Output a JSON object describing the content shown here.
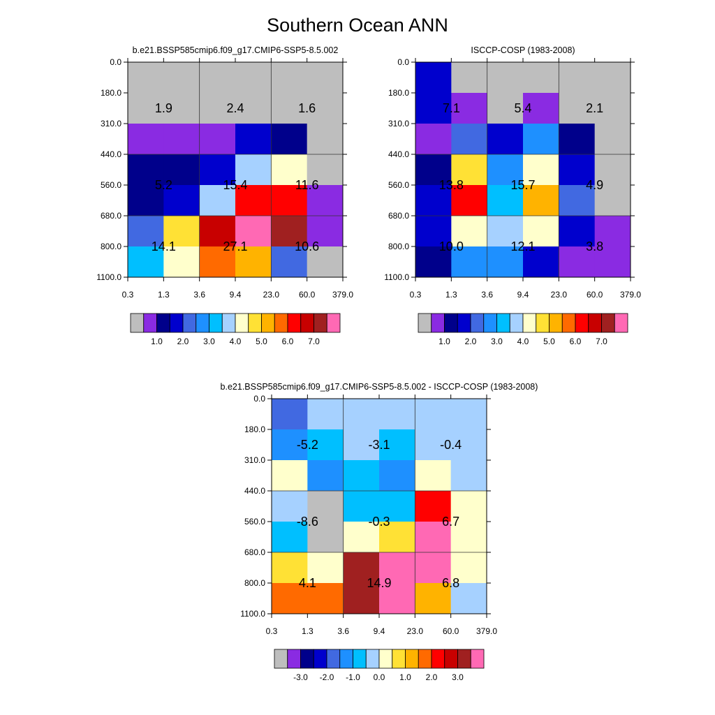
{
  "title": "Southern Ocean ANN",
  "colors": {
    "ref": [
      "#BEBEBE",
      "#8A2BE2",
      "#00008B",
      "#0000CD",
      "#4169E1",
      "#1E90FF",
      "#00BFFF",
      "#A6D1FF",
      "#FFFFCC",
      "#FFE135",
      "#FFB300",
      "#FF6A00",
      "#FF0000",
      "#C80000",
      "#A02020",
      "#FF69B4"
    ],
    "diff": [
      "#BEBEBE",
      "#8A2BE2",
      "#00008B",
      "#0000CD",
      "#4169E1",
      "#1E90FF",
      "#00BFFF",
      "#A6D1FF",
      "#FFFFCC",
      "#FFE135",
      "#FFB300",
      "#FF6A00",
      "#FF0000",
      "#C80000",
      "#A02020",
      "#FF69B4"
    ]
  },
  "chart_data": [
    {
      "type": "heatmap",
      "title": "b.e21.BSSP585cmip6.f09_g17.CMIP6-SSP5-8.5.002",
      "x_ticks": [
        "0.3",
        "1.3",
        "3.6",
        "9.4",
        "23.0",
        "60.0",
        "379.0"
      ],
      "y_ticks": [
        "0.0",
        "180.0",
        "310.0",
        "440.0",
        "560.0",
        "680.0",
        "800.0",
        "1100.0"
      ],
      "cell_colors": [
        [
          0,
          0,
          0,
          0,
          0,
          0
        ],
        [
          0,
          0,
          0,
          0,
          0,
          0
        ],
        [
          1,
          1,
          1,
          3,
          2,
          0
        ],
        [
          2,
          2,
          3,
          7,
          8,
          0
        ],
        [
          2,
          3,
          7,
          12,
          12,
          1
        ],
        [
          4,
          9,
          13,
          15,
          14,
          1
        ],
        [
          6,
          8,
          11,
          10,
          4,
          0
        ]
      ],
      "labels": [
        [
          "1.9",
          "2.4",
          "1.6"
        ],
        [
          "5.2",
          "15.4",
          "11.6"
        ],
        [
          "14.1",
          "27.1",
          "10.6"
        ]
      ],
      "colorbar": {
        "ticks": [
          "1.0",
          "2.0",
          "3.0",
          "4.0",
          "5.0",
          "6.0",
          "7.0"
        ]
      }
    },
    {
      "type": "heatmap",
      "title": "ISCCP-COSP (1983-2008)",
      "x_ticks": [
        "0.3",
        "1.3",
        "3.6",
        "9.4",
        "23.0",
        "60.0",
        "379.0"
      ],
      "y_ticks": [
        "0.0",
        "180.0",
        "310.0",
        "440.0",
        "560.0",
        "680.0",
        "800.0",
        "1100.0"
      ],
      "cell_colors": [
        [
          3,
          0,
          0,
          0,
          0,
          0
        ],
        [
          3,
          1,
          0,
          1,
          0,
          0
        ],
        [
          1,
          4,
          3,
          5,
          2,
          0
        ],
        [
          2,
          9,
          5,
          8,
          3,
          0
        ],
        [
          3,
          12,
          6,
          10,
          4,
          0
        ],
        [
          3,
          8,
          7,
          8,
          3,
          1
        ],
        [
          2,
          5,
          5,
          3,
          1,
          1
        ]
      ],
      "labels": [
        [
          "7.1",
          "5.4",
          "2.1"
        ],
        [
          "13.8",
          "15.7",
          "4.9"
        ],
        [
          "10.0",
          "12.1",
          "3.8"
        ]
      ],
      "colorbar": {
        "ticks": [
          "1.0",
          "2.0",
          "3.0",
          "4.0",
          "5.0",
          "6.0",
          "7.0"
        ]
      }
    },
    {
      "type": "heatmap",
      "title": "b.e21.BSSP585cmip6.f09_g17.CMIP6-SSP5-8.5.002 - ISCCP-COSP (1983-2008)",
      "x_ticks": [
        "0.3",
        "1.3",
        "3.6",
        "9.4",
        "23.0",
        "60.0",
        "379.0"
      ],
      "y_ticks": [
        "0.0",
        "180.0",
        "310.0",
        "440.0",
        "560.0",
        "680.0",
        "800.0",
        "1100.0"
      ],
      "cell_colors": [
        [
          4,
          7,
          7,
          7,
          7,
          7
        ],
        [
          5,
          6,
          7,
          6,
          7,
          7
        ],
        [
          8,
          5,
          6,
          5,
          8,
          7
        ],
        [
          7,
          0,
          6,
          6,
          12,
          8
        ],
        [
          6,
          0,
          8,
          9,
          15,
          8
        ],
        [
          9,
          8,
          14,
          15,
          15,
          8
        ],
        [
          11,
          11,
          14,
          15,
          10,
          7
        ]
      ],
      "labels": [
        [
          "-5.2",
          "-3.1",
          "-0.4"
        ],
        [
          "-8.6",
          "-0.3",
          "6.7"
        ],
        [
          "4.1",
          "14.9",
          "6.8"
        ]
      ],
      "colorbar": {
        "ticks": [
          "-3.0",
          "-2.0",
          "-1.0",
          "0.0",
          "1.0",
          "2.0",
          "3.0"
        ]
      }
    }
  ]
}
